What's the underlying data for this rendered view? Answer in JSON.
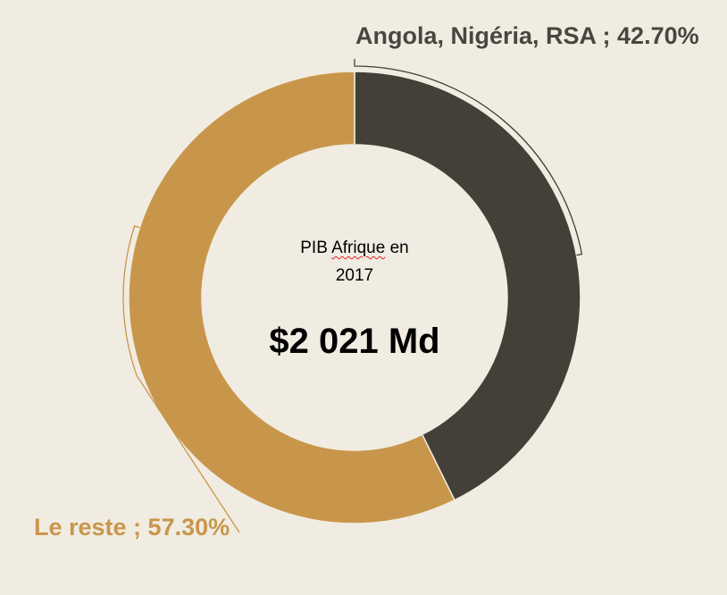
{
  "chart_data": {
    "type": "pie",
    "variant": "donut",
    "slices": [
      {
        "label": "Angola, Nigéria, RSA",
        "value": 42.7,
        "display": "Angola, Nigéria, RSA ; 42.70%",
        "color": "#443f37"
      },
      {
        "label": "Le reste",
        "value": 57.3,
        "display": "Le reste ; 57.30%",
        "color": "#c8964b"
      }
    ],
    "center_title_words": [
      "PIB",
      "Afrique",
      "en"
    ],
    "center_title_year": "2017",
    "center_value": "$2 021 Md",
    "start": "12 o'clock",
    "direction": "clockwise"
  },
  "colors": {
    "background": "#f1ece2",
    "leader_line_0": "#443f37",
    "leader_line_1": "#c8964b",
    "label_0": "#4a453e",
    "label_1": "#c8964b"
  }
}
